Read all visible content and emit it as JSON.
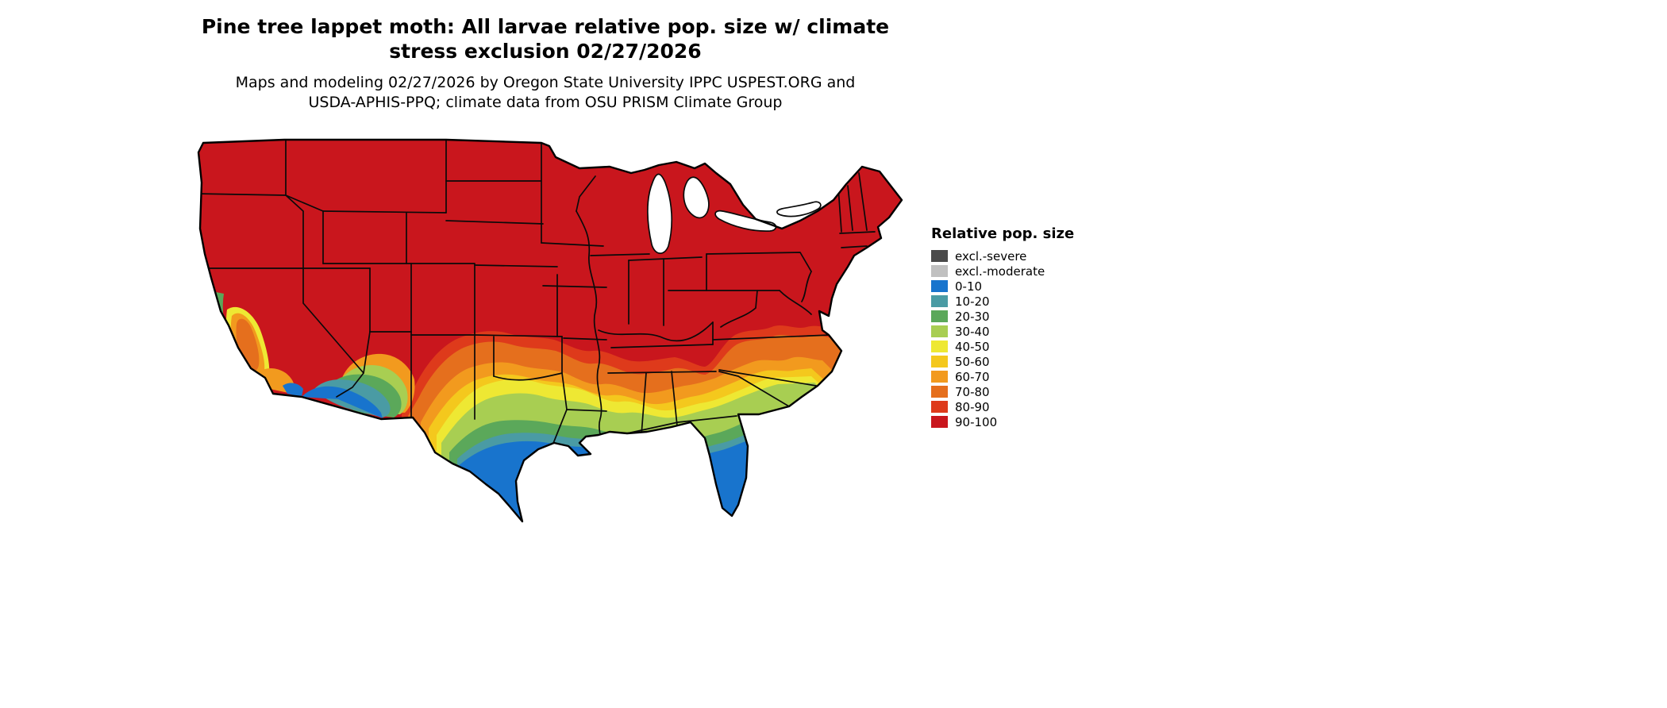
{
  "title": {
    "line1": "Pine tree lappet moth: All larvae relative pop. size w/ climate",
    "line2": "stress exclusion 02/27/2026"
  },
  "subtitle": {
    "line1": "Maps and modeling 02/27/2026 by Oregon State University IPPC USPEST.ORG and",
    "line2": "USDA-APHIS-PPQ; climate data from OSU PRISM Climate Group"
  },
  "legend": {
    "title": "Relative pop. size",
    "items": [
      {
        "label": "excl.-severe",
        "color": "#4A4A4A"
      },
      {
        "label": "excl.-moderate",
        "color": "#C0C0C0"
      },
      {
        "label": "0-10",
        "color": "#1874CD"
      },
      {
        "label": "10-20",
        "color": "#4A9BA4"
      },
      {
        "label": "20-30",
        "color": "#5BA85A"
      },
      {
        "label": "30-40",
        "color": "#A8CE52"
      },
      {
        "label": "40-50",
        "color": "#EEE833"
      },
      {
        "label": "50-60",
        "color": "#F4C81D"
      },
      {
        "label": "60-70",
        "color": "#F29A1E"
      },
      {
        "label": "70-80",
        "color": "#E56F1D"
      },
      {
        "label": "80-90",
        "color": "#DE3A1B"
      },
      {
        "label": "90-100",
        "color": "#C9161D"
      }
    ]
  },
  "map": {
    "region": "Continental United States",
    "outline_color": "#000000",
    "background_color": "#ffffff"
  }
}
